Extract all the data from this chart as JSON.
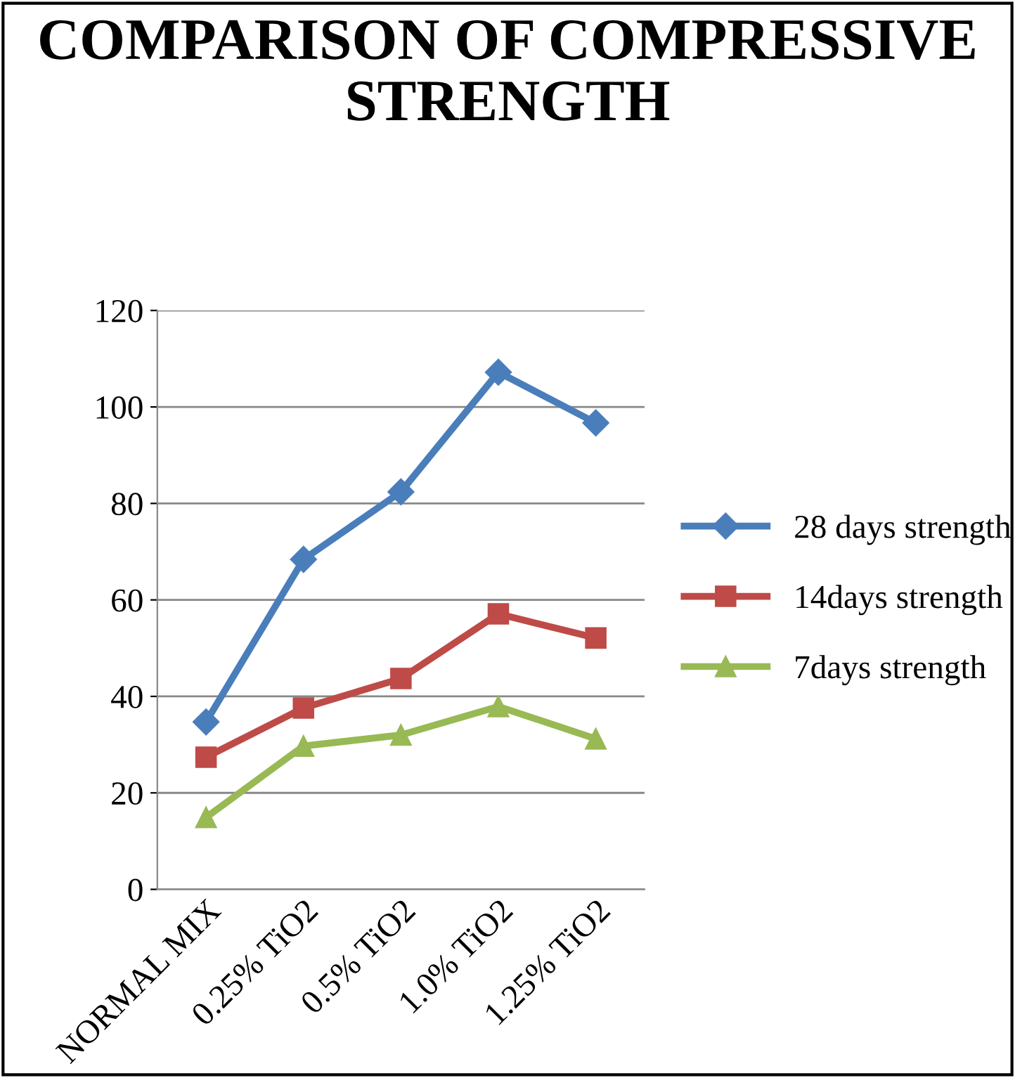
{
  "chart_data": {
    "type": "line",
    "title": "COMPARISON OF COMPRESSIVE STRENGTH",
    "categories": [
      "NORMAL MIX",
      "0.25% TiO2",
      "0.5% TiO2",
      "1.0% TiO2",
      "1.25% TiO2"
    ],
    "series": [
      {
        "name": "28 days strength",
        "color": "#4a7ebb",
        "marker": "diamond",
        "values": [
          34.7,
          68.4,
          82.4,
          107.2,
          96.7
        ]
      },
      {
        "name": "14days strength",
        "color": "#be4b48",
        "marker": "square",
        "values": [
          27.4,
          37.6,
          43.7,
          57.1,
          52.1
        ]
      },
      {
        "name": "7days strength",
        "color": "#98b954",
        "marker": "triangle",
        "values": [
          14.9,
          29.7,
          32.0,
          37.9,
          31.2
        ]
      }
    ],
    "ylim": [
      0,
      120
    ],
    "yticks": [
      0,
      20,
      40,
      60,
      80,
      100,
      120
    ],
    "grid": "y",
    "legend": "right",
    "line_style": "solid"
  }
}
